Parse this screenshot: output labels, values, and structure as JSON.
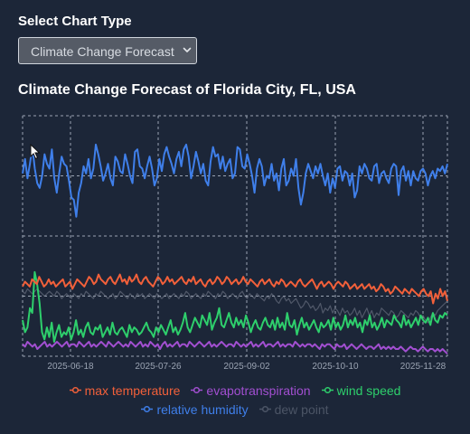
{
  "selector": {
    "label": "Select Chart Type",
    "value": "Climate Change Forecast"
  },
  "chart_title": "Climate Change Forecast of Florida City, FL, USA",
  "chart_data": {
    "type": "line",
    "title": "Climate Change Forecast of Florida City, FL, USA",
    "x_tick_labels": [
      "2025-06-18",
      "2025-07-26",
      "2025-09-02",
      "2025-10-10",
      "2025-11-28"
    ],
    "y_normalized": true,
    "series": [
      {
        "name": "relative humidity",
        "color": "#3f7fea",
        "visible": true,
        "values": [
          0.76,
          0.82,
          0.74,
          0.8,
          0.87,
          0.78,
          0.72,
          0.7,
          0.75,
          0.84,
          0.8,
          0.78,
          0.86,
          0.74,
          0.68,
          0.76,
          0.83,
          0.8,
          0.79,
          0.73,
          0.66,
          0.65,
          0.58,
          0.68,
          0.72,
          0.79,
          0.76,
          0.82,
          0.74,
          0.78,
          0.88,
          0.84,
          0.79,
          0.73,
          0.76,
          0.8,
          0.74,
          0.71,
          0.83,
          0.81,
          0.77,
          0.76,
          0.84,
          0.8,
          0.75,
          0.72,
          0.85,
          0.86,
          0.79,
          0.78,
          0.74,
          0.79,
          0.83,
          0.78,
          0.71,
          0.74,
          0.82,
          0.77,
          0.84,
          0.87,
          0.83,
          0.8,
          0.76,
          0.82,
          0.85,
          0.79,
          0.86,
          0.88,
          0.83,
          0.74,
          0.79,
          0.85,
          0.81,
          0.76,
          0.8,
          0.73,
          0.71,
          0.81,
          0.87,
          0.83,
          0.84,
          0.78,
          0.83,
          0.77,
          0.8,
          0.82,
          0.74,
          0.76,
          0.87,
          0.86,
          0.79,
          0.78,
          0.84,
          0.8,
          0.75,
          0.68,
          0.78,
          0.82,
          0.79,
          0.71,
          0.75,
          0.74,
          0.8,
          0.73,
          0.76,
          0.69,
          0.78,
          0.82,
          0.71,
          0.73,
          0.78,
          0.75,
          0.82,
          0.7,
          0.63,
          0.68,
          0.76,
          0.8,
          0.77,
          0.74,
          0.79,
          0.76,
          0.8,
          0.75,
          0.71,
          0.76,
          0.68,
          0.74,
          0.7,
          0.78,
          0.79,
          0.73,
          0.77,
          0.76,
          0.71,
          0.76,
          0.66,
          0.69,
          0.79,
          0.76,
          0.8,
          0.78,
          0.74,
          0.73,
          0.79,
          0.8,
          0.72,
          0.76,
          0.77,
          0.74,
          0.72,
          0.78,
          0.8,
          0.79,
          0.67,
          0.77,
          0.79,
          0.73,
          0.77,
          0.71,
          0.77,
          0.74,
          0.73,
          0.77,
          0.78,
          0.76,
          0.71,
          0.75,
          0.77,
          0.74,
          0.78,
          0.77,
          0.79,
          0.76,
          0.8
        ]
      },
      {
        "name": "max temperature",
        "color": "#f2603a",
        "visible": true,
        "values": [
          0.29,
          0.31,
          0.3,
          0.29,
          0.32,
          0.31,
          0.3,
          0.33,
          0.31,
          0.29,
          0.3,
          0.32,
          0.3,
          0.31,
          0.29,
          0.3,
          0.31,
          0.32,
          0.29,
          0.3,
          0.31,
          0.28,
          0.3,
          0.32,
          0.31,
          0.3,
          0.29,
          0.31,
          0.33,
          0.32,
          0.3,
          0.31,
          0.34,
          0.32,
          0.31,
          0.3,
          0.32,
          0.33,
          0.31,
          0.3,
          0.32,
          0.34,
          0.31,
          0.32,
          0.3,
          0.33,
          0.31,
          0.32,
          0.34,
          0.31,
          0.3,
          0.32,
          0.33,
          0.31,
          0.3,
          0.29,
          0.31,
          0.33,
          0.32,
          0.3,
          0.31,
          0.33,
          0.31,
          0.32,
          0.3,
          0.31,
          0.32,
          0.33,
          0.31,
          0.3,
          0.32,
          0.31,
          0.33,
          0.3,
          0.31,
          0.32,
          0.3,
          0.29,
          0.31,
          0.32,
          0.3,
          0.31,
          0.33,
          0.32,
          0.3,
          0.31,
          0.33,
          0.32,
          0.3,
          0.31,
          0.32,
          0.3,
          0.31,
          0.33,
          0.31,
          0.3,
          0.32,
          0.31,
          0.3,
          0.29,
          0.31,
          0.32,
          0.3,
          0.31,
          0.32,
          0.3,
          0.29,
          0.31,
          0.3,
          0.32,
          0.31,
          0.29,
          0.3,
          0.31,
          0.3,
          0.29,
          0.31,
          0.32,
          0.3,
          0.29,
          0.3,
          0.31,
          0.32,
          0.3,
          0.28,
          0.3,
          0.31,
          0.29,
          0.3,
          0.31,
          0.3,
          0.28,
          0.3,
          0.31,
          0.3,
          0.29,
          0.31,
          0.3,
          0.28,
          0.29,
          0.3,
          0.28,
          0.29,
          0.3,
          0.28,
          0.29,
          0.3,
          0.28,
          0.29,
          0.27,
          0.28,
          0.3,
          0.29,
          0.27,
          0.28,
          0.26,
          0.27,
          0.29,
          0.28,
          0.27,
          0.26,
          0.28,
          0.27,
          0.26,
          0.28,
          0.27,
          0.26,
          0.25,
          0.27,
          0.28,
          0.26,
          0.25,
          0.27,
          0.22,
          0.26,
          0.24,
          0.28,
          0.25,
          0.27,
          0.23
        ]
      },
      {
        "name": "evapotranspiration",
        "color": "#a24fd1",
        "visible": true,
        "values": [
          0.05,
          0.04,
          0.06,
          0.05,
          0.04,
          0.05,
          0.03,
          0.04,
          0.05,
          0.06,
          0.04,
          0.05,
          0.04,
          0.05,
          0.06,
          0.05,
          0.04,
          0.05,
          0.06,
          0.04,
          0.05,
          0.05,
          0.04,
          0.06,
          0.05,
          0.04,
          0.05,
          0.06,
          0.04,
          0.05,
          0.04,
          0.05,
          0.06,
          0.05,
          0.04,
          0.06,
          0.05,
          0.04,
          0.05,
          0.06,
          0.05,
          0.04,
          0.05,
          0.04,
          0.06,
          0.05,
          0.04,
          0.05,
          0.06,
          0.04,
          0.05,
          0.04,
          0.06,
          0.05,
          0.04,
          0.05,
          0.03,
          0.05,
          0.06,
          0.04,
          0.05,
          0.04,
          0.05,
          0.06,
          0.04,
          0.05,
          0.05,
          0.04,
          0.06,
          0.05,
          0.04,
          0.05,
          0.06,
          0.05,
          0.04,
          0.05,
          0.06,
          0.04,
          0.05,
          0.04,
          0.05,
          0.06,
          0.05,
          0.04,
          0.05,
          0.05,
          0.04,
          0.06,
          0.05,
          0.04,
          0.05,
          0.04,
          0.05,
          0.06,
          0.04,
          0.05,
          0.04,
          0.05,
          0.06,
          0.04,
          0.05,
          0.05,
          0.04,
          0.05,
          0.06,
          0.04,
          0.05,
          0.04,
          0.05,
          0.05,
          0.04,
          0.06,
          0.05,
          0.04,
          0.05,
          0.04,
          0.05,
          0.05,
          0.04,
          0.05,
          0.04,
          0.03,
          0.05,
          0.04,
          0.05,
          0.05,
          0.04,
          0.03,
          0.05,
          0.04,
          0.04,
          0.05,
          0.03,
          0.04,
          0.05,
          0.04,
          0.03,
          0.04,
          0.05,
          0.04,
          0.03,
          0.04,
          0.04,
          0.03,
          0.04,
          0.05,
          0.03,
          0.04,
          0.03,
          0.04,
          0.03,
          0.04,
          0.03,
          0.03,
          0.04,
          0.03,
          0.02,
          0.03,
          0.04,
          0.03,
          0.03,
          0.02,
          0.03,
          0.04,
          0.03,
          0.02,
          0.03,
          0.03,
          0.02,
          0.03,
          0.02,
          0.03,
          0.02,
          0.01
        ]
      },
      {
        "name": "wind speed",
        "color": "#2ecf6c",
        "visible": true,
        "values": [
          0.15,
          0.1,
          0.12,
          0.2,
          0.18,
          0.35,
          0.3,
          0.22,
          0.1,
          0.07,
          0.12,
          0.08,
          0.14,
          0.06,
          0.1,
          0.13,
          0.08,
          0.1,
          0.09,
          0.12,
          0.07,
          0.1,
          0.15,
          0.09,
          0.11,
          0.08,
          0.12,
          0.14,
          0.1,
          0.09,
          0.12,
          0.11,
          0.13,
          0.08,
          0.1,
          0.12,
          0.09,
          0.14,
          0.1,
          0.09,
          0.11,
          0.12,
          0.1,
          0.08,
          0.13,
          0.1,
          0.12,
          0.11,
          0.09,
          0.1,
          0.12,
          0.14,
          0.11,
          0.1,
          0.08,
          0.12,
          0.1,
          0.13,
          0.11,
          0.09,
          0.12,
          0.15,
          0.1,
          0.12,
          0.09,
          0.11,
          0.14,
          0.18,
          0.12,
          0.1,
          0.13,
          0.16,
          0.14,
          0.12,
          0.17,
          0.15,
          0.13,
          0.18,
          0.11,
          0.14,
          0.16,
          0.2,
          0.13,
          0.12,
          0.15,
          0.18,
          0.14,
          0.12,
          0.16,
          0.13,
          0.15,
          0.12,
          0.17,
          0.14,
          0.1,
          0.13,
          0.15,
          0.12,
          0.11,
          0.14,
          0.16,
          0.13,
          0.12,
          0.15,
          0.11,
          0.16,
          0.12,
          0.14,
          0.11,
          0.18,
          0.13,
          0.12,
          0.15,
          0.09,
          0.13,
          0.16,
          0.12,
          0.14,
          0.11,
          0.13,
          0.15,
          0.12,
          0.1,
          0.14,
          0.12,
          0.13,
          0.15,
          0.11,
          0.16,
          0.12,
          0.14,
          0.11,
          0.13,
          0.17,
          0.12,
          0.15,
          0.13,
          0.16,
          0.12,
          0.14,
          0.1,
          0.15,
          0.13,
          0.17,
          0.12,
          0.14,
          0.11,
          0.13,
          0.16,
          0.12,
          0.15,
          0.14,
          0.13,
          0.17,
          0.15,
          0.14,
          0.12,
          0.17,
          0.13,
          0.15,
          0.12,
          0.14,
          0.16,
          0.13,
          0.17,
          0.15,
          0.14,
          0.16,
          0.13,
          0.18,
          0.15,
          0.14,
          0.17,
          0.16,
          0.18,
          0.17
        ]
      },
      {
        "name": "relative humidity",
        "color": "#3f7fea",
        "visible": false,
        "values": []
      },
      {
        "name": "dew point",
        "color": "#7b8291",
        "visible": true,
        "faded": true,
        "values": [
          0.27,
          0.26,
          0.28,
          0.27,
          0.26,
          0.27,
          0.28,
          0.27,
          0.26,
          0.25,
          0.26,
          0.27,
          0.26,
          0.25,
          0.27,
          0.26,
          0.24,
          0.25,
          0.26,
          0.25,
          0.24,
          0.26,
          0.25,
          0.24,
          0.26,
          0.25,
          0.27,
          0.26,
          0.25,
          0.24,
          0.26,
          0.25,
          0.27,
          0.26,
          0.25,
          0.24,
          0.25,
          0.26,
          0.24,
          0.25,
          0.27,
          0.26,
          0.25,
          0.24,
          0.26,
          0.25,
          0.24,
          0.26,
          0.25,
          0.26,
          0.24,
          0.25,
          0.26,
          0.25,
          0.24,
          0.26,
          0.25,
          0.24,
          0.25,
          0.26,
          0.24,
          0.25,
          0.26,
          0.25,
          0.24,
          0.26,
          0.25,
          0.27,
          0.26,
          0.24,
          0.25,
          0.26,
          0.25,
          0.24,
          0.26,
          0.25,
          0.27,
          0.26,
          0.25,
          0.24,
          0.26,
          0.25,
          0.27,
          0.26,
          0.24,
          0.25,
          0.26,
          0.25,
          0.24,
          0.26,
          0.27,
          0.25,
          0.24,
          0.26,
          0.25,
          0.24,
          0.26,
          0.25,
          0.24,
          0.23,
          0.25,
          0.24,
          0.26,
          0.25,
          0.23,
          0.22,
          0.24,
          0.25,
          0.23,
          0.24,
          0.22,
          0.23,
          0.24,
          0.22,
          0.2,
          0.21,
          0.23,
          0.22,
          0.2,
          0.21,
          0.19,
          0.2,
          0.22,
          0.18,
          0.2,
          0.19,
          0.21,
          0.18,
          0.2,
          0.19,
          0.17,
          0.2,
          0.18,
          0.19,
          0.17,
          0.18,
          0.2,
          0.17,
          0.19,
          0.16,
          0.18,
          0.2,
          0.17,
          0.19,
          0.16,
          0.18,
          0.17,
          0.2,
          0.19,
          0.18,
          0.17,
          0.19,
          0.18,
          0.16,
          0.17,
          0.19,
          0.18,
          0.17,
          0.16,
          0.18,
          0.17,
          0.19,
          0.18,
          0.16,
          0.17,
          0.15,
          0.14,
          0.16,
          0.18,
          0.17,
          0.19,
          0.2,
          0.21,
          0.22,
          0.23
        ]
      }
    ]
  },
  "legend": {
    "row1": [
      {
        "label": "max temperature",
        "color": "#f2603a",
        "active": true
      },
      {
        "label": "evapotranspiration",
        "color": "#a24fd1",
        "active": true
      },
      {
        "label": "wind speed",
        "color": "#2ecf6c",
        "active": true
      }
    ],
    "row2": [
      {
        "label": "relative humidity",
        "color": "#3f7fea",
        "active": true
      },
      {
        "label": "dew point",
        "color": "#7b8291",
        "active": false
      }
    ]
  },
  "colors": {
    "background": "#1c2638",
    "grid": "#9aa3b2",
    "tick_text": "#9aa3b2"
  },
  "icons": {
    "select": "chevron-down-icon",
    "cursor": "mouse-pointer-icon"
  }
}
